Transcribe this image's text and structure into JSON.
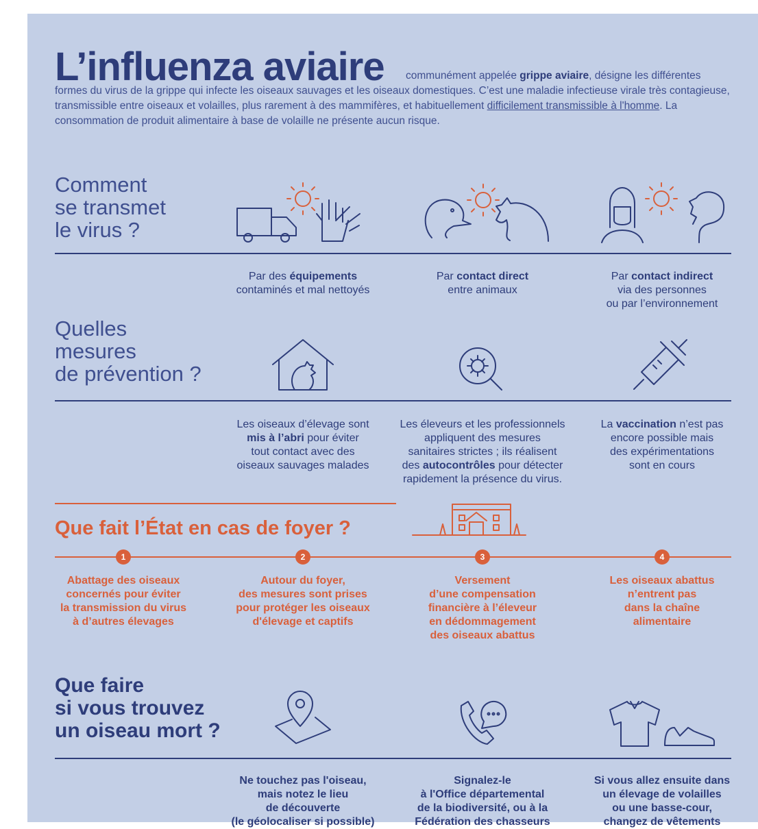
{
  "title": "L’influenza aviaire",
  "intro": {
    "t1": "communément appelée ",
    "b1": "grippe aviaire",
    "t2": ", désigne les différentes formes du virus de la grippe qui infecte les oiseaux sauvages et les oiseaux domestiques. C’est une maladie infectieuse virale très contagieuse, transmissible entre oiseaux et volailles, plus rarement à des mammifères, et habituellement ",
    "u1": "difficilement transmissible à l'homme",
    "t3": ". La consommation de produit alimentaire à base de volaille ne présente aucun risque."
  },
  "s1": {
    "heading": [
      "Comment",
      "se transmet",
      "le virus ?"
    ],
    "items": [
      {
        "pre": "Par des ",
        "bold": "équipements",
        "rest": "contaminés et mal nettoyés",
        "icon": "truck-gloves-virus-icon"
      },
      {
        "pre": "Par ",
        "bold": "contact direct",
        "rest": "entre animaux",
        "icon": "duck-chicken-virus-icon"
      },
      {
        "pre": "Par ",
        "bold": "contact indirect",
        "rest": "via des personnes",
        "rest2": "ou par l’environnement",
        "icon": "people-virus-icon"
      }
    ]
  },
  "s2": {
    "heading": [
      "Quelles",
      "mesures",
      "de prévention ?"
    ],
    "items": [
      {
        "l1": "Les oiseaux d’élevage sont",
        "b": "mis à l’abri",
        "l2": " pour éviter",
        "l3": "tout contact avec des",
        "l4": "oiseaux sauvages malades",
        "icon": "chicken-house-icon"
      },
      {
        "l1": "Les éleveurs et les professionnels",
        "l2": "appliquent des mesures",
        "l3": "sanitaires strictes ; ils réalisent",
        "l4pre": "des ",
        "b": "autocontrôles",
        "l4post": " pour détecter",
        "l5": "rapidement la présence du virus.",
        "icon": "virus-magnifier-icon"
      },
      {
        "l1pre": "La ",
        "b": "vaccination",
        "l1post": " n’est pas",
        "l2": "encore possible mais",
        "l3": "des expérimentations",
        "l4": "sont en cours",
        "icon": "syringe-icon"
      }
    ]
  },
  "s3": {
    "heading": "Que fait l’État en cas de foyer ?",
    "colors": {
      "accent": "#d9603b"
    },
    "steps": [
      {
        "n": "1",
        "lines": [
          "Abattage des oiseaux",
          "concernés pour éviter",
          "la transmission du virus",
          "à d’autres élevages"
        ]
      },
      {
        "n": "2",
        "lines": [
          "Autour du foyer,",
          "des mesures sont prises",
          "pour protéger les oiseaux",
          "d'élevage et captifs"
        ]
      },
      {
        "n": "3",
        "lines": [
          "Versement",
          "d’une compensation",
          "financière à l’éleveur",
          "en dédommagement",
          "des oiseaux abattus"
        ]
      },
      {
        "n": "4",
        "lines": [
          "Les oiseaux abattus",
          "n’entrent pas",
          "dans la chaîne",
          "alimentaire"
        ]
      }
    ]
  },
  "s4": {
    "heading": [
      "Que faire",
      "si vous trouvez",
      "un oiseau mort ?"
    ],
    "items": [
      {
        "lines": [
          "Ne touchez pas l'oiseau,",
          "mais notez le lieu",
          "de découverte",
          "(le géolocaliser si possible)"
        ],
        "icon": "map-pin-icon"
      },
      {
        "lines": [
          "Signalez-le",
          "à l'Office départemental",
          "de la biodiversité, ou à la",
          "Fédération des chasseurs"
        ],
        "icon": "phone-chat-icon"
      },
      {
        "lines": [
          "Si vous allez ensuite dans",
          "un élevage de volailles",
          "ou une basse-cour,",
          "changez de vêtements"
        ],
        "icon": "shirt-shoe-icon"
      }
    ]
  },
  "colors": {
    "background": "#c3cfe6",
    "primary": "#2e3d7a",
    "accent": "#d9603b"
  }
}
